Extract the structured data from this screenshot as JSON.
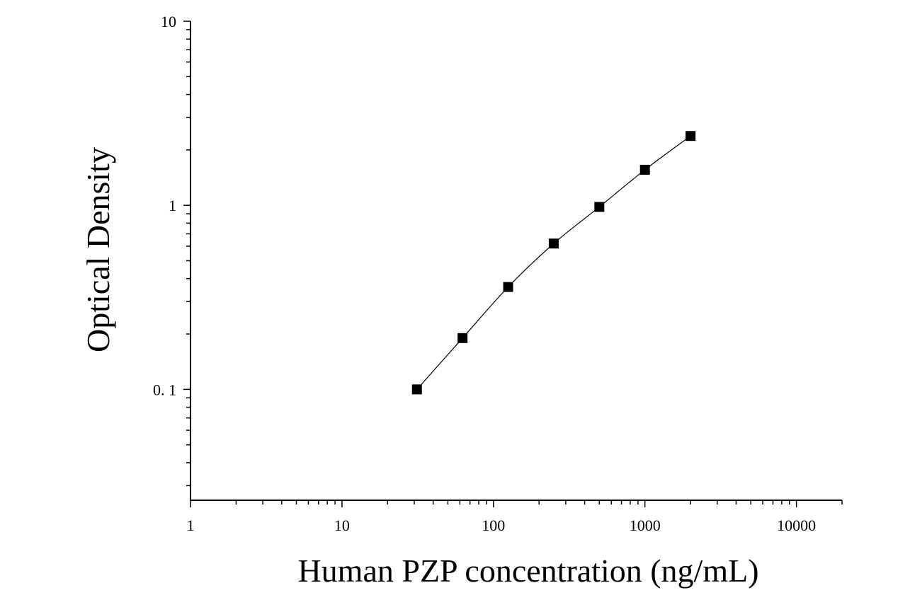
{
  "chart_data": {
    "type": "scatter",
    "xlabel": "Human PZP concentration (ng/mL)",
    "ylabel": "Optical Density",
    "xscale": "log",
    "yscale": "log",
    "xlim": [
      1,
      20000
    ],
    "ylim": [
      0.025,
      10
    ],
    "x_ticks": [
      "1",
      "10",
      "100",
      "1000",
      "10000"
    ],
    "y_ticks": [
      "0. 1",
      "1",
      "10"
    ],
    "grid": false,
    "legend": "none",
    "fit_curve": true,
    "marker": "square",
    "color": "#000000",
    "series": [
      {
        "x": [
          31.25,
          62.5,
          125,
          250,
          500,
          1000,
          2000
        ],
        "y": [
          0.1,
          0.19,
          0.36,
          0.62,
          0.98,
          1.56,
          2.38
        ]
      }
    ]
  }
}
